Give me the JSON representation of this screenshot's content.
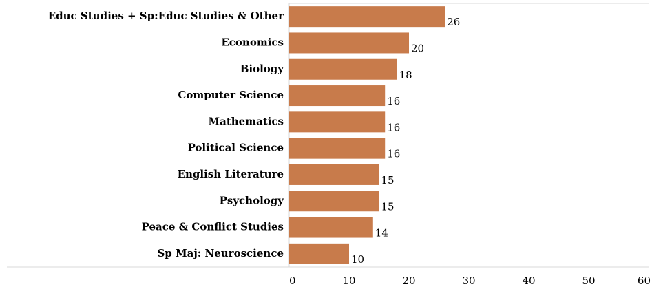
{
  "chart_data": {
    "type": "barh",
    "categories": [
      "Educ Studies + Sp:Educ Studies & Other",
      "Economics",
      "Biology",
      "Computer Science",
      "Mathematics",
      "Political Science",
      "English Literature",
      "Psychology",
      "Peace & Conflict Studies",
      "Sp Maj: Neuroscience"
    ],
    "values": [
      26,
      20,
      18,
      16,
      16,
      16,
      15,
      15,
      14,
      10
    ],
    "color": "#c87b4b",
    "xlim": [
      0,
      60
    ],
    "xticks": [
      0,
      10,
      20,
      30,
      40,
      50,
      60
    ],
    "grid": false
  }
}
